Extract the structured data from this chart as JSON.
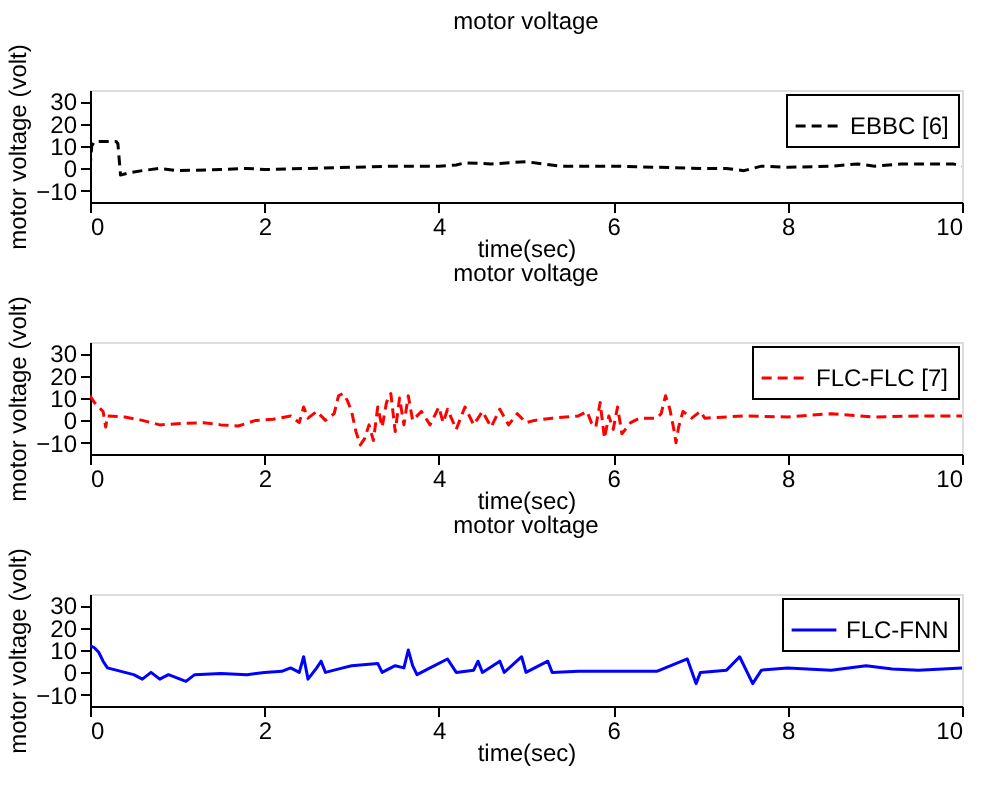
{
  "chart_data": [
    {
      "type": "line",
      "title": "motor voltage",
      "xlabel": "time(sec)",
      "ylabel": "motor voltage (volt)",
      "xlim": [
        0,
        10
      ],
      "xticks": [
        0,
        2,
        4,
        6,
        8,
        10
      ],
      "ylim": [
        -15,
        35
      ],
      "yticks": [
        -10,
        0,
        10,
        20,
        30
      ],
      "legend": "top right",
      "grid": false,
      "x": [
        0,
        0.02,
        0.05,
        0.3,
        0.32,
        0.35,
        0.45,
        0.6,
        0.8,
        1.0,
        1.5,
        1.8,
        2,
        2.5,
        3,
        3.5,
        4,
        4.2,
        4.3,
        4.6,
        5,
        5.2,
        5.4,
        6,
        6.5,
        7,
        7.3,
        7.5,
        7.7,
        8,
        8.5,
        8.8,
        9,
        9.3,
        9.6,
        9.9,
        10
      ],
      "series": [
        {
          "name": "EBBC [6]",
          "color": "#000000",
          "line_style": "dashed",
          "values": [
            0,
            10,
            12,
            12,
            11,
            -3,
            -2,
            -1,
            0,
            -1,
            -0.5,
            0,
            -0.5,
            0,
            0.5,
            1,
            1,
            1.5,
            2.5,
            2,
            3,
            2,
            1,
            1,
            0.5,
            0,
            0,
            -1,
            1,
            0.5,
            1,
            2,
            1,
            2,
            2,
            2,
            1
          ]
        }
      ]
    },
    {
      "type": "line",
      "title": "motor voltage",
      "xlabel": "time(sec)",
      "ylabel": "motor voltage (volt)",
      "xlim": [
        0,
        10
      ],
      "xticks": [
        0,
        2,
        4,
        6,
        8,
        10
      ],
      "ylim": [
        -15,
        35
      ],
      "yticks": [
        -10,
        0,
        10,
        20,
        30
      ],
      "legend": "top right",
      "grid": false,
      "x": [
        0,
        0.05,
        0.1,
        0.15,
        0.18,
        0.2,
        0.4,
        0.6,
        0.8,
        1,
        1.3,
        1.5,
        1.7,
        1.9,
        2.1,
        2.3,
        2.4,
        2.45,
        2.5,
        2.6,
        2.7,
        2.8,
        2.85,
        2.9,
        2.95,
        3.0,
        3.05,
        3.1,
        3.15,
        3.2,
        3.25,
        3.3,
        3.35,
        3.4,
        3.45,
        3.5,
        3.55,
        3.6,
        3.65,
        3.7,
        3.8,
        3.9,
        4.0,
        4.05,
        4.1,
        4.2,
        4.3,
        4.4,
        4.5,
        4.6,
        4.7,
        4.8,
        4.9,
        5.0,
        5.1,
        5.3,
        5.6,
        5.7,
        5.75,
        5.8,
        5.85,
        5.9,
        5.95,
        6.0,
        6.05,
        6.1,
        6.2,
        6.3,
        6.5,
        6.55,
        6.6,
        6.65,
        6.7,
        6.72,
        6.75,
        6.8,
        6.9,
        7.0,
        7.05,
        7.5,
        8,
        8.5,
        9,
        9.5,
        10
      ],
      "series": [
        {
          "name": "FLC-FLC [7]",
          "color": "#ff0000",
          "line_style": "dashed",
          "values": [
            11,
            8,
            6,
            4,
            -3,
            2,
            1.5,
            0,
            -2,
            -1.5,
            -1,
            -2,
            -2.5,
            0,
            0.5,
            2,
            -1,
            6,
            1,
            4,
            0,
            3,
            11,
            12,
            9,
            4,
            -5,
            -11,
            -8,
            -2,
            -9,
            6,
            -3,
            8,
            12,
            -5,
            10,
            -2,
            11,
            0,
            4,
            -2,
            6,
            -1,
            5,
            -4,
            6,
            -2,
            4,
            -3,
            5,
            -2,
            3,
            -1,
            0,
            1,
            2,
            4,
            -1,
            -3,
            8,
            -8,
            2,
            -4,
            6,
            -6,
            -1,
            1,
            1,
            3,
            11,
            5,
            -5,
            -10,
            -3,
            4,
            1,
            4,
            1,
            2,
            1.5,
            3,
            1.5,
            2,
            2
          ]
        }
      ]
    },
    {
      "type": "line",
      "title": "motor voltage",
      "xlabel": "time(sec)",
      "ylabel": "motor voltage (volt)",
      "xlim": [
        0,
        10
      ],
      "xticks": [
        0,
        2,
        4,
        6,
        8,
        10
      ],
      "ylim": [
        -15,
        35
      ],
      "yticks": [
        -10,
        0,
        10,
        20,
        30
      ],
      "legend": "top right",
      "grid": false,
      "x": [
        0,
        0.05,
        0.1,
        0.15,
        0.2,
        0.3,
        0.5,
        0.6,
        0.7,
        0.8,
        0.9,
        1.1,
        1.2,
        1.5,
        1.8,
        2,
        2.2,
        2.3,
        2.4,
        2.45,
        2.5,
        2.6,
        2.65,
        2.7,
        2.9,
        3,
        3.3,
        3.35,
        3.5,
        3.6,
        3.65,
        3.7,
        3.75,
        3.9,
        4.1,
        4.2,
        4.4,
        4.45,
        4.5,
        4.7,
        4.75,
        4.95,
        5,
        5.25,
        5.3,
        5.6,
        6,
        6.5,
        6.85,
        6.95,
        7,
        7.3,
        7.45,
        7.6,
        7.7,
        8,
        8.5,
        8.9,
        9.2,
        9.5,
        10
      ],
      "series": [
        {
          "name": "FLC-FNN",
          "color": "#0000ff",
          "line_style": "solid",
          "values": [
            12,
            11,
            9,
            5,
            2,
            1,
            -1,
            -3,
            0,
            -3,
            -1,
            -4,
            -1,
            -0.5,
            -1,
            0,
            0.5,
            2,
            0,
            7,
            -3,
            2,
            5,
            0,
            2,
            3,
            4,
            0,
            3,
            2,
            10,
            3,
            -1,
            2,
            6,
            0,
            1,
            5,
            0,
            5,
            0,
            7,
            0,
            5,
            0,
            0.5,
            0.5,
            0.5,
            6,
            -5,
            0,
            1,
            7,
            -5,
            1,
            2,
            1,
            3,
            1.5,
            1,
            2
          ]
        }
      ]
    }
  ]
}
